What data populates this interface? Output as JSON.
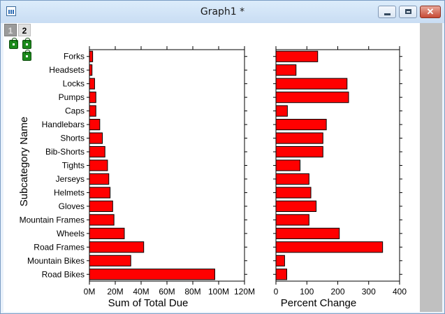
{
  "window": {
    "title": "Graph1 *",
    "close_glyph": "✕"
  },
  "layers": {
    "tabs": [
      "1",
      "2"
    ]
  },
  "icons": {
    "app": "graph-window-icon",
    "lock": "lock-icon"
  },
  "chart_data": [
    {
      "type": "bar",
      "orientation": "horizontal",
      "categories": [
        "Road Bikes",
        "Mountain Bikes",
        "Road Frames",
        "Wheels",
        "Mountain Frames",
        "Gloves",
        "Helmets",
        "Jerseys",
        "Tights",
        "Bib-Shorts",
        "Shorts",
        "Handlebars",
        "Caps",
        "Pumps",
        "Locks",
        "Headsets",
        "Forks"
      ],
      "values": [
        97,
        32,
        42,
        27,
        19,
        18,
        16,
        15,
        14,
        12,
        10,
        8,
        5,
        5,
        4,
        2,
        2.5
      ],
      "xlabel": "Sum of Total Due",
      "ylabel": "Subcategory Name",
      "xlim": [
        0,
        120
      ],
      "xticks": [
        0,
        20,
        40,
        60,
        80,
        100,
        120
      ],
      "xticklabels": [
        "0M",
        "20M",
        "40M",
        "60M",
        "80M",
        "100M",
        "120M"
      ],
      "bar_color": "#ff0000",
      "grid": false
    },
    {
      "type": "bar",
      "orientation": "horizontal",
      "categories": [
        "Road Bikes",
        "Mountain Bikes",
        "Road Frames",
        "Wheels",
        "Mountain Frames",
        "Gloves",
        "Helmets",
        "Jerseys",
        "Tights",
        "Bib-Shorts",
        "Shorts",
        "Handlebars",
        "Caps",
        "Pumps",
        "Locks",
        "Headsets",
        "Forks"
      ],
      "values": [
        35,
        28,
        345,
        205,
        107,
        130,
        113,
        107,
        78,
        152,
        152,
        163,
        37,
        235,
        230,
        65,
        135
      ],
      "xlabel": "Percent Change",
      "xlim": [
        0,
        400
      ],
      "xticks": [
        0,
        100,
        200,
        300,
        400
      ],
      "xticklabels": [
        "0",
        "100",
        "200",
        "300",
        "400"
      ],
      "bar_color": "#ff0000",
      "grid": false
    }
  ]
}
